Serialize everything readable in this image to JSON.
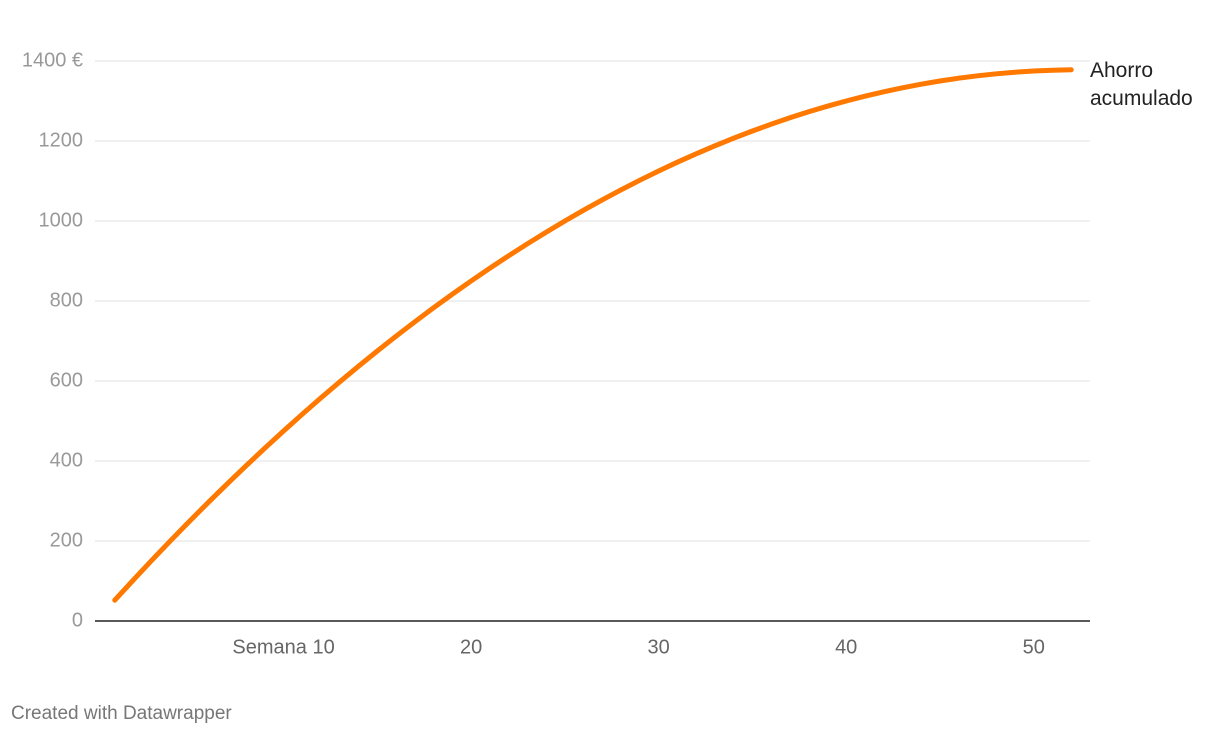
{
  "chart_data": {
    "type": "line",
    "x": [
      1,
      2,
      3,
      4,
      5,
      6,
      7,
      8,
      9,
      10,
      11,
      12,
      13,
      14,
      15,
      16,
      17,
      18,
      19,
      20,
      21,
      22,
      23,
      24,
      25,
      26,
      27,
      28,
      29,
      30,
      31,
      32,
      33,
      34,
      35,
      36,
      37,
      38,
      39,
      40,
      41,
      42,
      43,
      44,
      45,
      46,
      47,
      48,
      49,
      50,
      51,
      52
    ],
    "series": [
      {
        "name": "Ahorro acumulado",
        "color": "#ff7800",
        "values": [
          52,
          103,
          153,
          202,
          250,
          297,
          343,
          388,
          432,
          475,
          517,
          558,
          598,
          637,
          675,
          712,
          748,
          783,
          817,
          850,
          882,
          913,
          943,
          972,
          1000,
          1027,
          1053,
          1078,
          1102,
          1125,
          1147,
          1168,
          1188,
          1207,
          1225,
          1242,
          1258,
          1273,
          1287,
          1300,
          1312,
          1323,
          1333,
          1342,
          1350,
          1357,
          1363,
          1368,
          1372,
          1375,
          1377,
          1378
        ]
      }
    ],
    "xlim": [
      0,
      53
    ],
    "xticks": [
      {
        "value": 10,
        "label": "Semana 10"
      },
      20,
      30,
      40,
      50
    ],
    "ylim": [
      0,
      1400
    ],
    "yticks": [
      0,
      200,
      400,
      600,
      800,
      1000,
      1200,
      {
        "value": 1400,
        "label": "1400 €"
      }
    ],
    "grid": true,
    "footer": "Created with Datawrapper"
  }
}
